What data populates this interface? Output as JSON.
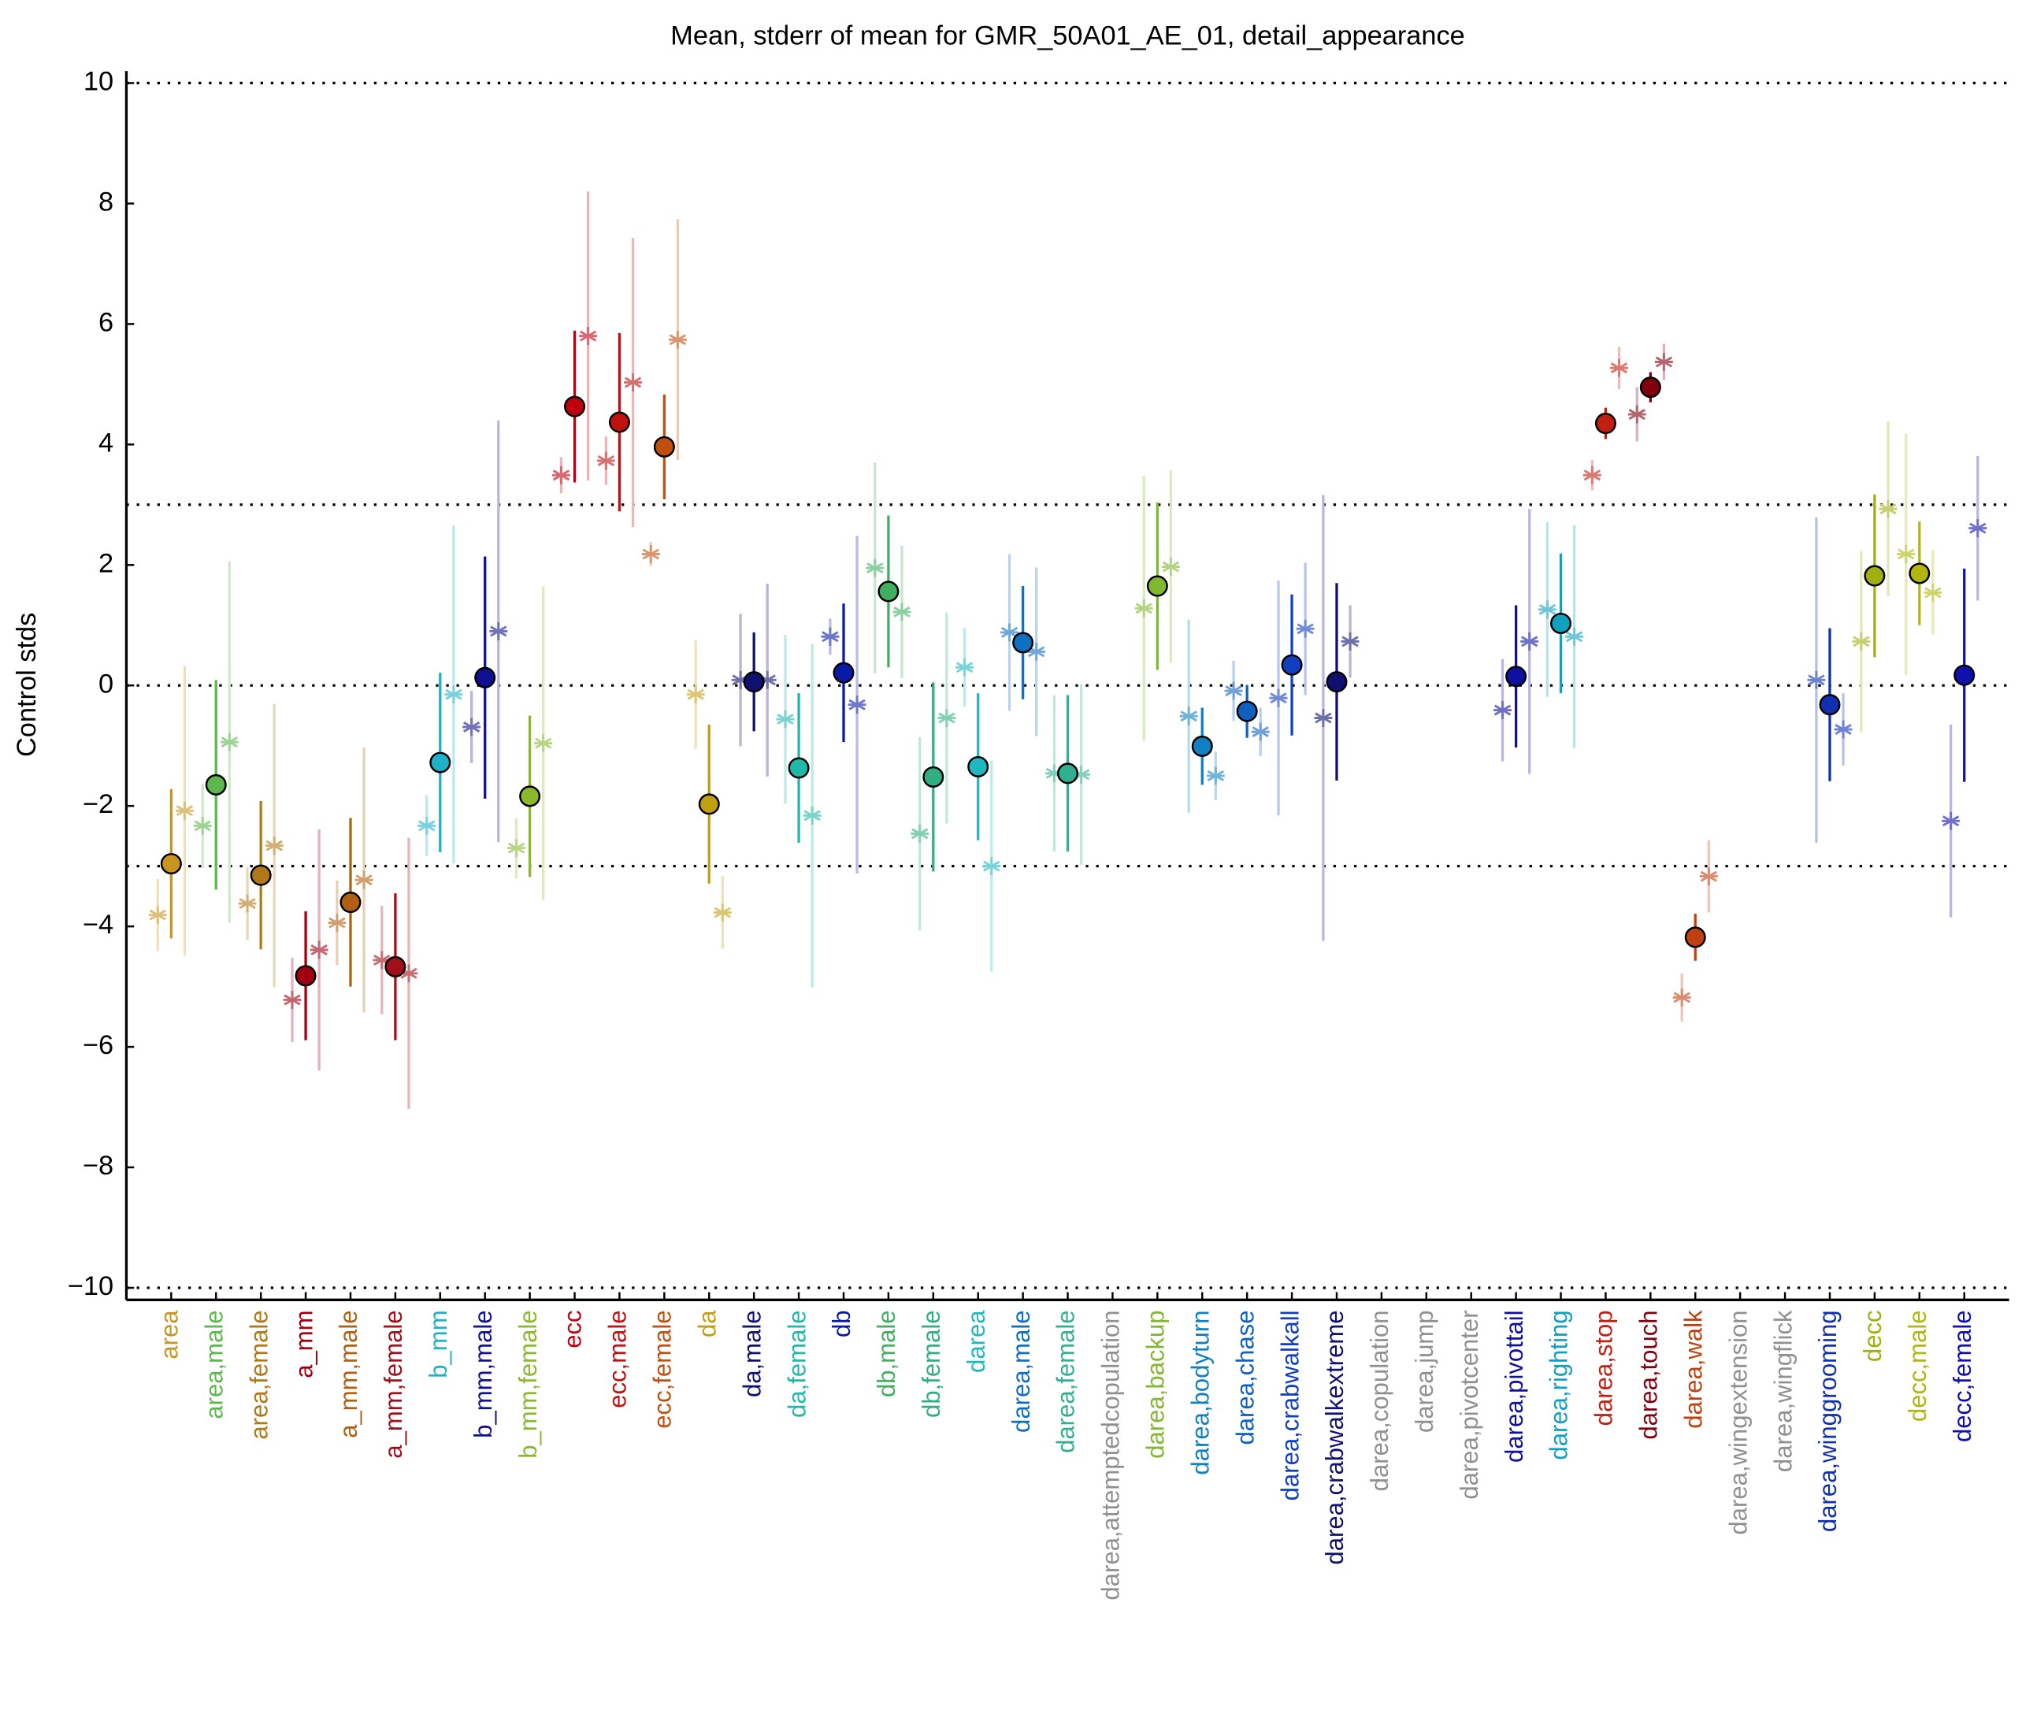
{
  "chart_data": {
    "type": "errorbar",
    "title": "Mean, stderr of mean for GMR_50A01_AE_01, detail_appearance",
    "ylabel": "Control stds",
    "categories": [
      "area",
      "area,male",
      "area,female",
      "a_mm",
      "a_mm,male",
      "a_mm,female",
      "b_mm",
      "b_mm,male",
      "b_mm,female",
      "ecc",
      "ecc,male",
      "ecc,female",
      "da",
      "da,male",
      "da,female",
      "db",
      "db,male",
      "db,female",
      "darea",
      "darea,male",
      "darea,female",
      "darea,attemptedcopulation",
      "darea,backup",
      "darea,bodyturn",
      "darea,chase",
      "darea,crabwalkall",
      "darea,crabwalkextreme",
      "darea,copulation",
      "darea,jump",
      "darea,pivotcenter",
      "darea,pivottail",
      "darea,righting",
      "darea,stop",
      "darea,touch",
      "darea,walk",
      "darea,wingextension",
      "darea,wingflick",
      "darea,winggrooming",
      "decc",
      "decc,male",
      "decc,female"
    ],
    "colors": [
      "#c8961e",
      "#5cb84c",
      "#b07818",
      "#a00010",
      "#b06010",
      "#a0101a",
      "#20b0c8",
      "#101090",
      "#8cb830",
      "#c00010",
      "#c01010",
      "#c05010",
      "#c0a010",
      "#101070",
      "#20b8a8",
      "#0a1aa8",
      "#40b060",
      "#30b080",
      "#20b8c0",
      "#1070c0",
      "#30b090",
      "#909090",
      "#80b830",
      "#1080c0",
      "#1060c0",
      "#1040c0",
      "#101070",
      "#909090",
      "#909090",
      "#909090",
      "#1010a0",
      "#10a0c0",
      "#c02010",
      "#800010",
      "#c04010",
      "#909090",
      "#909090",
      "#1030b0",
      "#a0b010",
      "#b0b810",
      "#1010b0"
    ],
    "series": [
      {
        "values": [
          -2.96,
          -1.65,
          -3.15,
          -4.82,
          -3.6,
          -4.67,
          -1.28,
          0.13,
          -1.84,
          4.63,
          4.37,
          3.96,
          -1.97,
          0.06,
          -1.37,
          0.21,
          1.56,
          -1.52,
          -1.35,
          0.71,
          -1.46,
          null,
          1.65,
          -1.01,
          -0.43,
          0.34,
          0.06,
          null,
          null,
          null,
          0.15,
          1.03,
          4.35,
          4.95,
          -4.18,
          null,
          null,
          -0.32,
          1.82,
          1.86,
          0.17
        ],
        "errors": [
          1.24,
          1.74,
          1.23,
          1.07,
          1.4,
          1.22,
          1.49,
          2.01,
          1.34,
          1.26,
          1.48,
          0.87,
          1.32,
          0.82,
          1.24,
          1.15,
          1.26,
          1.57,
          1.22,
          0.94,
          1.3,
          null,
          1.39,
          0.64,
          0.44,
          1.17,
          1.64,
          null,
          null,
          null,
          1.18,
          1.16,
          0.26,
          0.25,
          0.39,
          null,
          null,
          1.27,
          1.35,
          0.86,
          1.77
        ]
      },
      {
        "values": [
          -3.81,
          -2.33,
          -3.62,
          -5.22,
          -3.94,
          -4.56,
          -2.33,
          -0.69,
          -2.7,
          3.49,
          3.73,
          2.18,
          -0.15,
          0.09,
          -0.56,
          0.81,
          1.95,
          -2.46,
          0.3,
          0.88,
          -1.46,
          null,
          1.28,
          -0.51,
          -0.09,
          -0.21,
          -0.54,
          null,
          null,
          null,
          -0.41,
          1.26,
          3.49,
          4.5,
          -5.18,
          null,
          null,
          0.09,
          0.73,
          2.18,
          -2.25
        ],
        "errors": [
          0.6,
          0.7,
          0.6,
          0.7,
          0.7,
          0.9,
          0.5,
          0.6,
          0.5,
          0.3,
          0.4,
          0.2,
          0.9,
          1.1,
          1.4,
          0.3,
          1.75,
          1.6,
          0.65,
          1.3,
          1.3,
          null,
          2.2,
          1.6,
          0.5,
          1.95,
          3.7,
          null,
          null,
          null,
          0.85,
          1.45,
          0.25,
          0.45,
          0.4,
          null,
          null,
          2.7,
          1.5,
          2.0,
          1.6
        ]
      },
      {
        "values": [
          -2.08,
          -0.94,
          -2.66,
          -4.39,
          -3.23,
          -4.78,
          -0.15,
          0.9,
          -0.96,
          5.8,
          5.03,
          5.74,
          -3.77,
          0.09,
          -2.16,
          -0.32,
          1.22,
          -0.54,
          -3.0,
          0.56,
          -1.48,
          null,
          1.97,
          -1.5,
          -0.77,
          0.94,
          0.73,
          null,
          null,
          null,
          0.73,
          0.81,
          5.27,
          5.37,
          -3.17,
          null,
          null,
          -0.73,
          2.93,
          1.54,
          2.61
        ],
        "errors": [
          2.4,
          3.0,
          2.35,
          2.0,
          2.2,
          2.25,
          2.8,
          3.5,
          2.6,
          2.4,
          2.4,
          2.0,
          0.6,
          1.6,
          2.85,
          2.8,
          1.1,
          1.75,
          1.75,
          1.4,
          1.5,
          null,
          1.6,
          0.4,
          0.4,
          1.1,
          0.6,
          null,
          null,
          null,
          2.2,
          1.85,
          0.35,
          0.3,
          0.6,
          null,
          null,
          0.6,
          1.45,
          0.7,
          1.2
        ]
      }
    ],
    "ylim": [
      -10.2,
      10.2
    ],
    "yticks": [
      {
        "value": -10,
        "label": "−10"
      },
      {
        "value": -8,
        "label": "−8"
      },
      {
        "value": -6,
        "label": "−6"
      },
      {
        "value": -4,
        "label": "−4"
      },
      {
        "value": -2,
        "label": "−2"
      },
      0,
      2,
      4,
      6,
      8,
      10
    ],
    "hlines": [
      -10,
      -3,
      0,
      3,
      10
    ]
  }
}
